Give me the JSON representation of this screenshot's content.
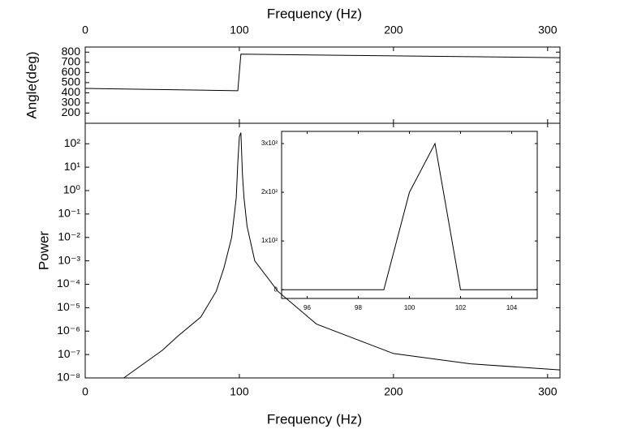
{
  "chart_data": [
    {
      "type": "line",
      "xlabel": "Frequency (Hz)",
      "ylabel": "Angle(deg)",
      "xaxis_position": "top",
      "x": [
        0,
        99,
        101,
        308
      ],
      "values": [
        443,
        420,
        780,
        745
      ],
      "color": "#000000",
      "xlim": [
        0,
        308
      ],
      "ylim": [
        100,
        850
      ],
      "xticks": [
        0,
        100,
        200,
        300
      ],
      "yticks": [
        200,
        300,
        400,
        500,
        600,
        700,
        800
      ]
    },
    {
      "type": "line",
      "xlabel": "Frequency (Hz)",
      "ylabel": "Power",
      "xaxis_position": "bottom",
      "log_y": true,
      "x": [
        25,
        50,
        60,
        75,
        85,
        90,
        95,
        98,
        99,
        100,
        101,
        102,
        103,
        105,
        110,
        125,
        150,
        200,
        250,
        308
      ],
      "values": [
        1e-08,
        1.5e-07,
        6e-07,
        4e-06,
        5e-05,
        0.0005,
        0.01,
        0.5,
        16,
        200,
        300,
        5,
        0.5,
        0.03,
        0.001,
        5e-05,
        2e-06,
        1.1e-07,
        4e-08,
        2.2e-08
      ],
      "color": "#000000",
      "xlim": [
        0,
        308
      ],
      "ylim": [
        1e-08,
        750
      ],
      "xticks": [
        0,
        100,
        200,
        300
      ],
      "yticks": [
        {
          "value": 1e-08,
          "label": "10⁻⁸"
        },
        {
          "value": 1e-07,
          "label": "10⁻⁷"
        },
        {
          "value": 1e-06,
          "label": "10⁻⁶"
        },
        {
          "value": 1e-05,
          "label": "10⁻⁵"
        },
        {
          "value": 0.0001,
          "label": "10⁻⁴"
        },
        {
          "value": 0.001,
          "label": "10⁻³"
        },
        {
          "value": 0.01,
          "label": "10⁻²"
        },
        {
          "value": 0.1,
          "label": "10⁻¹"
        },
        {
          "value": 1,
          "label": "10⁰"
        },
        {
          "value": 10,
          "label": "10¹"
        },
        {
          "value": 100,
          "label": "10²"
        }
      ]
    },
    {
      "type": "line",
      "xaxis_position": "bottom",
      "x": [
        95,
        99,
        100,
        101,
        102,
        105
      ],
      "values": [
        0,
        0,
        200,
        300,
        0,
        0
      ],
      "color": "#000000",
      "xlim": [
        95,
        105
      ],
      "ylim": [
        -18,
        325
      ],
      "xticks": [
        96,
        98,
        100,
        102,
        104
      ],
      "yticks": [
        0,
        {
          "value": 100,
          "label": "1x10²"
        },
        {
          "value": 200,
          "label": "2x10²"
        },
        {
          "value": 300,
          "label": "3x10²"
        }
      ]
    }
  ]
}
